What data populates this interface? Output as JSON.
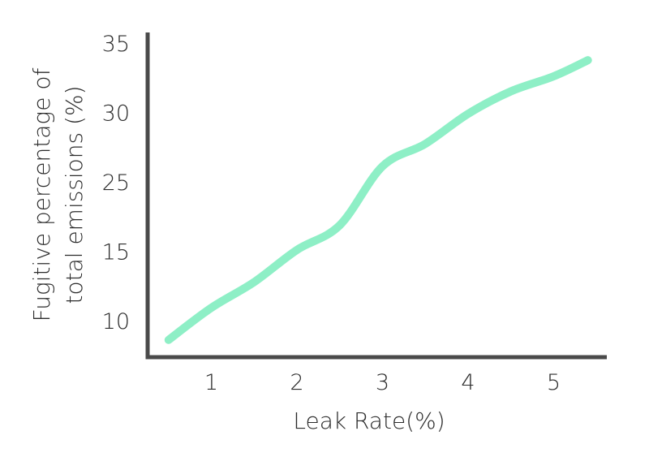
{
  "chart_data": {
    "type": "line",
    "title": "",
    "xlabel": "Leak Rate(%)",
    "ylabel_lines": [
      "Fugitive percentage of",
      "total emissions (%)"
    ],
    "x_ticks": [
      "1",
      "2",
      "3",
      "4",
      "5"
    ],
    "y_ticks": [
      "10",
      "15",
      "25",
      "30",
      "35"
    ],
    "y_tick_note": "tick labels are evenly spaced as printed (20 is not shown)",
    "xlim": [
      0,
      5.6
    ],
    "y_tick_span": [
      10,
      35
    ],
    "series": [
      {
        "color": "#8eefc6",
        "points": [
          {
            "x": 0.5,
            "y": 8.2
          },
          {
            "x": 1.0,
            "y": 11.2
          },
          {
            "x": 1.5,
            "y": 13.6
          },
          {
            "x": 2.0,
            "y": 16.6
          },
          {
            "x": 2.5,
            "y": 18.9
          },
          {
            "x": 3.0,
            "y": 24.4
          },
          {
            "x": 3.5,
            "y": 26.5
          },
          {
            "x": 4.0,
            "y": 29.3
          },
          {
            "x": 4.5,
            "y": 31.4
          },
          {
            "x": 5.0,
            "y": 32.8
          },
          {
            "x": 5.4,
            "y": 34.3
          }
        ]
      }
    ],
    "axis_color": "#4a4a4a",
    "grid": false,
    "legend": "none"
  }
}
